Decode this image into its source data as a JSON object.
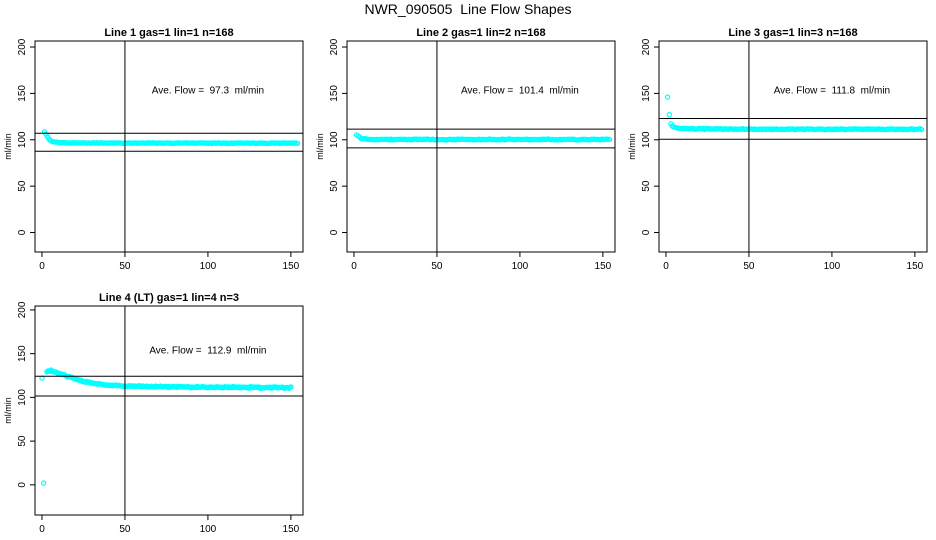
{
  "main_title": "NWR_090505  Line Flow Shapes",
  "colors": {
    "points": "#00ffff",
    "axis": "#000000",
    "background": "#ffffff",
    "text": "#000000"
  },
  "chart_data": [
    {
      "type": "scatter",
      "title": "Line 1 gas=1 lin=1 n=168",
      "annotation": "Ave. Flow =  97.3  ml/min",
      "ave_flow": 97.3,
      "ylabel": "ml/min",
      "xlim": [
        -4.2,
        157.3
      ],
      "ylim": [
        -21,
        206.5
      ],
      "xticks": [
        0,
        50,
        100,
        150
      ],
      "yticks": [
        0,
        50,
        100,
        150,
        200
      ],
      "vline": 50,
      "hlines": [
        107.0,
        87.6
      ],
      "trend": [
        [
          1.5,
          108.5
        ],
        [
          2,
          107
        ],
        [
          3,
          104
        ],
        [
          4,
          101
        ],
        [
          5,
          99.3
        ],
        [
          7,
          97.8
        ],
        [
          10,
          97
        ],
        [
          15,
          96.7
        ],
        [
          40,
          96.5
        ],
        [
          90,
          96.5
        ],
        [
          154,
          96.4
        ]
      ],
      "noise": 0.55,
      "n_points": 170,
      "outliers": [],
      "seed": 11
    },
    {
      "type": "scatter",
      "title": "Line 2 gas=1 lin=2 n=168",
      "annotation": "Ave. Flow =  101.4  ml/min",
      "ave_flow": 101.4,
      "ylabel": "ml/min",
      "xlim": [
        -4.2,
        157.3
      ],
      "ylim": [
        -21,
        206.5
      ],
      "xticks": [
        0,
        50,
        100,
        150
      ],
      "yticks": [
        0,
        50,
        100,
        150,
        200
      ],
      "vline": 50,
      "hlines": [
        111.5,
        91.3
      ],
      "trend": [
        [
          1.5,
          105.5
        ],
        [
          2.5,
          104
        ],
        [
          4,
          102
        ],
        [
          6,
          101
        ],
        [
          10,
          100.6
        ],
        [
          20,
          100.4
        ],
        [
          60,
          100.3
        ],
        [
          154,
          100.3
        ]
      ],
      "noise": 0.75,
      "n_points": 170,
      "outliers": [],
      "seed": 22
    },
    {
      "type": "scatter",
      "title": "Line 3 gas=1 lin=3 n=168",
      "annotation": "Ave. Flow =  111.8  ml/min",
      "ave_flow": 111.8,
      "ylabel": "ml/min",
      "xlim": [
        -4.2,
        157.3
      ],
      "ylim": [
        -21,
        206.5
      ],
      "xticks": [
        0,
        50,
        100,
        150
      ],
      "yticks": [
        0,
        50,
        100,
        150,
        200
      ],
      "vline": 50,
      "hlines": [
        123.0,
        100.6
      ],
      "trend": [
        [
          3,
          117
        ],
        [
          4,
          114.5
        ],
        [
          6,
          112.8
        ],
        [
          10,
          112
        ],
        [
          20,
          111.7
        ],
        [
          60,
          111.4
        ],
        [
          154,
          111.3
        ]
      ],
      "noise": 0.7,
      "n_points": 172,
      "outliers": [
        [
          1,
          146
        ],
        [
          2,
          127
        ]
      ],
      "seed": 33
    },
    {
      "type": "scatter",
      "title": "Line 4 (LT) gas=1 lin=4 n=3",
      "annotation": "Ave. Flow =  112.9  ml/min",
      "ave_flow": 112.9,
      "ylabel": "ml/min",
      "xlim": [
        -4.2,
        157.3
      ],
      "ylim": [
        -34.5,
        204.5
      ],
      "xticks": [
        0,
        50,
        100,
        150
      ],
      "yticks": [
        0,
        50,
        100,
        150,
        200
      ],
      "vline": 50,
      "hlines": [
        124.2,
        101.6
      ],
      "trend": [
        [
          3,
          129.5
        ],
        [
          5,
          130.5
        ],
        [
          7,
          129.5
        ],
        [
          10,
          127.5
        ],
        [
          14,
          125
        ],
        [
          18,
          122.5
        ],
        [
          22,
          120
        ],
        [
          27,
          117.5
        ],
        [
          33,
          115.5
        ],
        [
          40,
          114
        ],
        [
          50,
          113
        ],
        [
          65,
          112.3
        ],
        [
          90,
          111.8
        ],
        [
          120,
          111.6
        ],
        [
          150,
          111.2
        ]
      ],
      "noise": 1.25,
      "n_points": 230,
      "outliers": [
        [
          1,
          2
        ],
        [
          0,
          122
        ]
      ],
      "seed": 44
    }
  ]
}
